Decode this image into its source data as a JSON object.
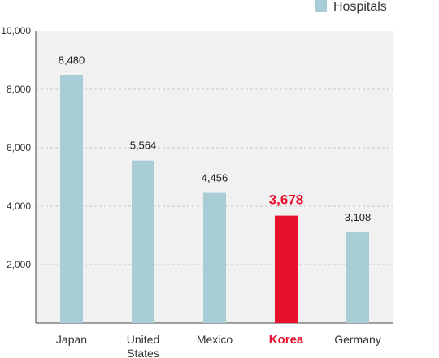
{
  "chart_data": {
    "type": "bar",
    "categories": [
      "Japan",
      "United States",
      "Mexico",
      "Korea",
      "Germany"
    ],
    "category_lines": [
      [
        "Japan"
      ],
      [
        "United",
        "States"
      ],
      [
        "Mexico"
      ],
      [
        "Korea"
      ],
      [
        "Germany"
      ]
    ],
    "series": [
      {
        "name": "Hospitals",
        "values": [
          8480,
          5564,
          4456,
          3678,
          3108
        ],
        "value_labels": [
          "8,480",
          "5,564",
          "4,456",
          "3,678",
          "3,108"
        ]
      }
    ],
    "highlight_category": "Korea",
    "y_ticks": [
      2000,
      4000,
      6000,
      8000,
      10000
    ],
    "y_tick_labels": [
      "2,000",
      "4,000",
      "6,000",
      "8,000",
      "10,000"
    ],
    "ylim": [
      0,
      10000
    ],
    "title": "",
    "xlabel": "",
    "ylabel": "",
    "grid": true,
    "grid_style": "dashed",
    "legend_position": "top-right",
    "colors": {
      "bar": "#a8cdd4",
      "highlight": "#e8112d",
      "plot_background": "#f1f1f1",
      "grid": "#c8c8c8",
      "axis": "#444444"
    }
  }
}
